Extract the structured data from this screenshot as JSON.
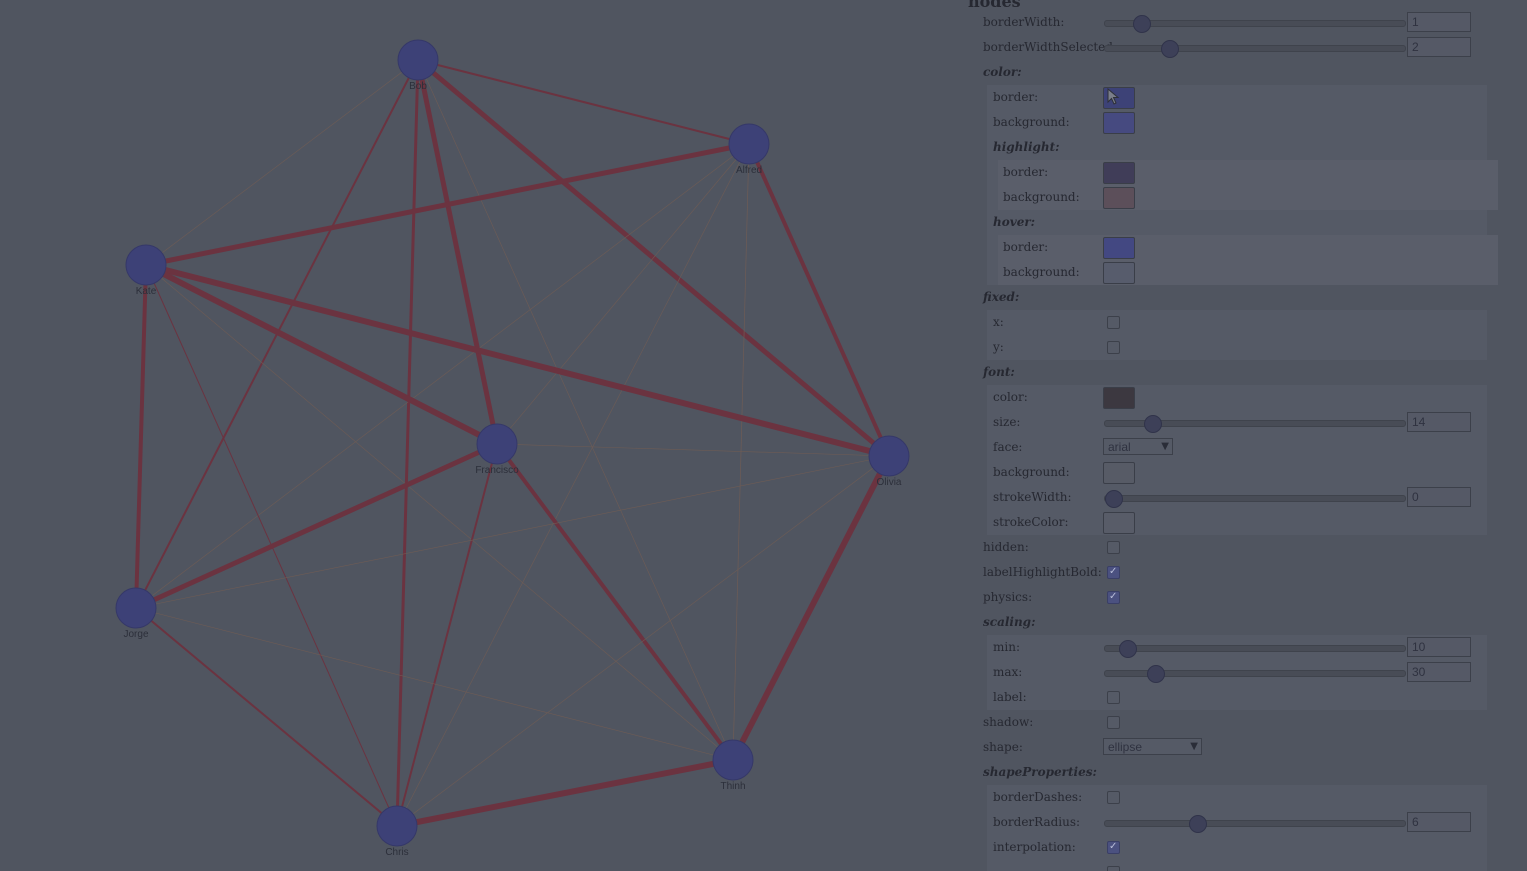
{
  "graph": {
    "nodes": [
      {
        "id": "bob",
        "label": "Bob"
      },
      {
        "id": "alfred",
        "label": "Alfred"
      },
      {
        "id": "kate",
        "label": "Kate"
      },
      {
        "id": "francisco",
        "label": "Francisco"
      },
      {
        "id": "olivia",
        "label": "Olivia"
      },
      {
        "id": "jorge",
        "label": "Jorge"
      },
      {
        "id": "thinh",
        "label": "Thinh"
      },
      {
        "id": "chris",
        "label": "Chris"
      }
    ],
    "node_color": "#3d4177",
    "edge_color": "#6b3340"
  },
  "panel": {
    "section_title": "nodes",
    "borderWidth": {
      "label": "borderWidth:",
      "value": "1"
    },
    "borderWidthSelected": {
      "label": "borderWidthSelected:",
      "value": "2"
    },
    "color": {
      "title": "color:",
      "border": {
        "label": "border:",
        "color": "#3d4277"
      },
      "background": {
        "label": "background:",
        "color": "#464a80"
      },
      "highlight": {
        "title": "highlight:",
        "border": {
          "label": "border:",
          "color": "#403d58"
        },
        "background": {
          "label": "background:",
          "color": "#5c4f5a"
        }
      },
      "hover": {
        "title": "hover:",
        "border": {
          "label": "border:",
          "color": "#434882"
        },
        "background": {
          "label": "background:",
          "color": "#575c6c"
        }
      }
    },
    "fixed": {
      "title": "fixed:",
      "x": {
        "label": "x:"
      },
      "y": {
        "label": "y:"
      }
    },
    "font": {
      "title": "font:",
      "color": {
        "label": "color:",
        "color": "#3c3840"
      },
      "size": {
        "label": "size:",
        "value": "14"
      },
      "face": {
        "label": "face:",
        "value": "arial"
      },
      "background": {
        "label": "background:",
        "color": "#575b66"
      },
      "strokeWidth": {
        "label": "strokeWidth:",
        "value": "0"
      },
      "strokeColor": {
        "label": "strokeColor:",
        "color": "#585c68"
      }
    },
    "hidden": {
      "label": "hidden:"
    },
    "labelHighlightBold": {
      "label": "labelHighlightBold:"
    },
    "physics": {
      "label": "physics:"
    },
    "scaling": {
      "title": "scaling:",
      "min": {
        "label": "min:",
        "value": "10"
      },
      "max": {
        "label": "max:",
        "value": "30"
      },
      "label": {
        "label": "label:"
      }
    },
    "shadow": {
      "label": "shadow:"
    },
    "shape": {
      "label": "shape:",
      "value": "ellipse"
    },
    "shapeProperties": {
      "title": "shapeProperties:",
      "borderDashes": {
        "label": "borderDashes:"
      },
      "borderRadius": {
        "label": "borderRadius:",
        "value": "6"
      },
      "interpolation": {
        "label": "interpolation:"
      }
    }
  }
}
